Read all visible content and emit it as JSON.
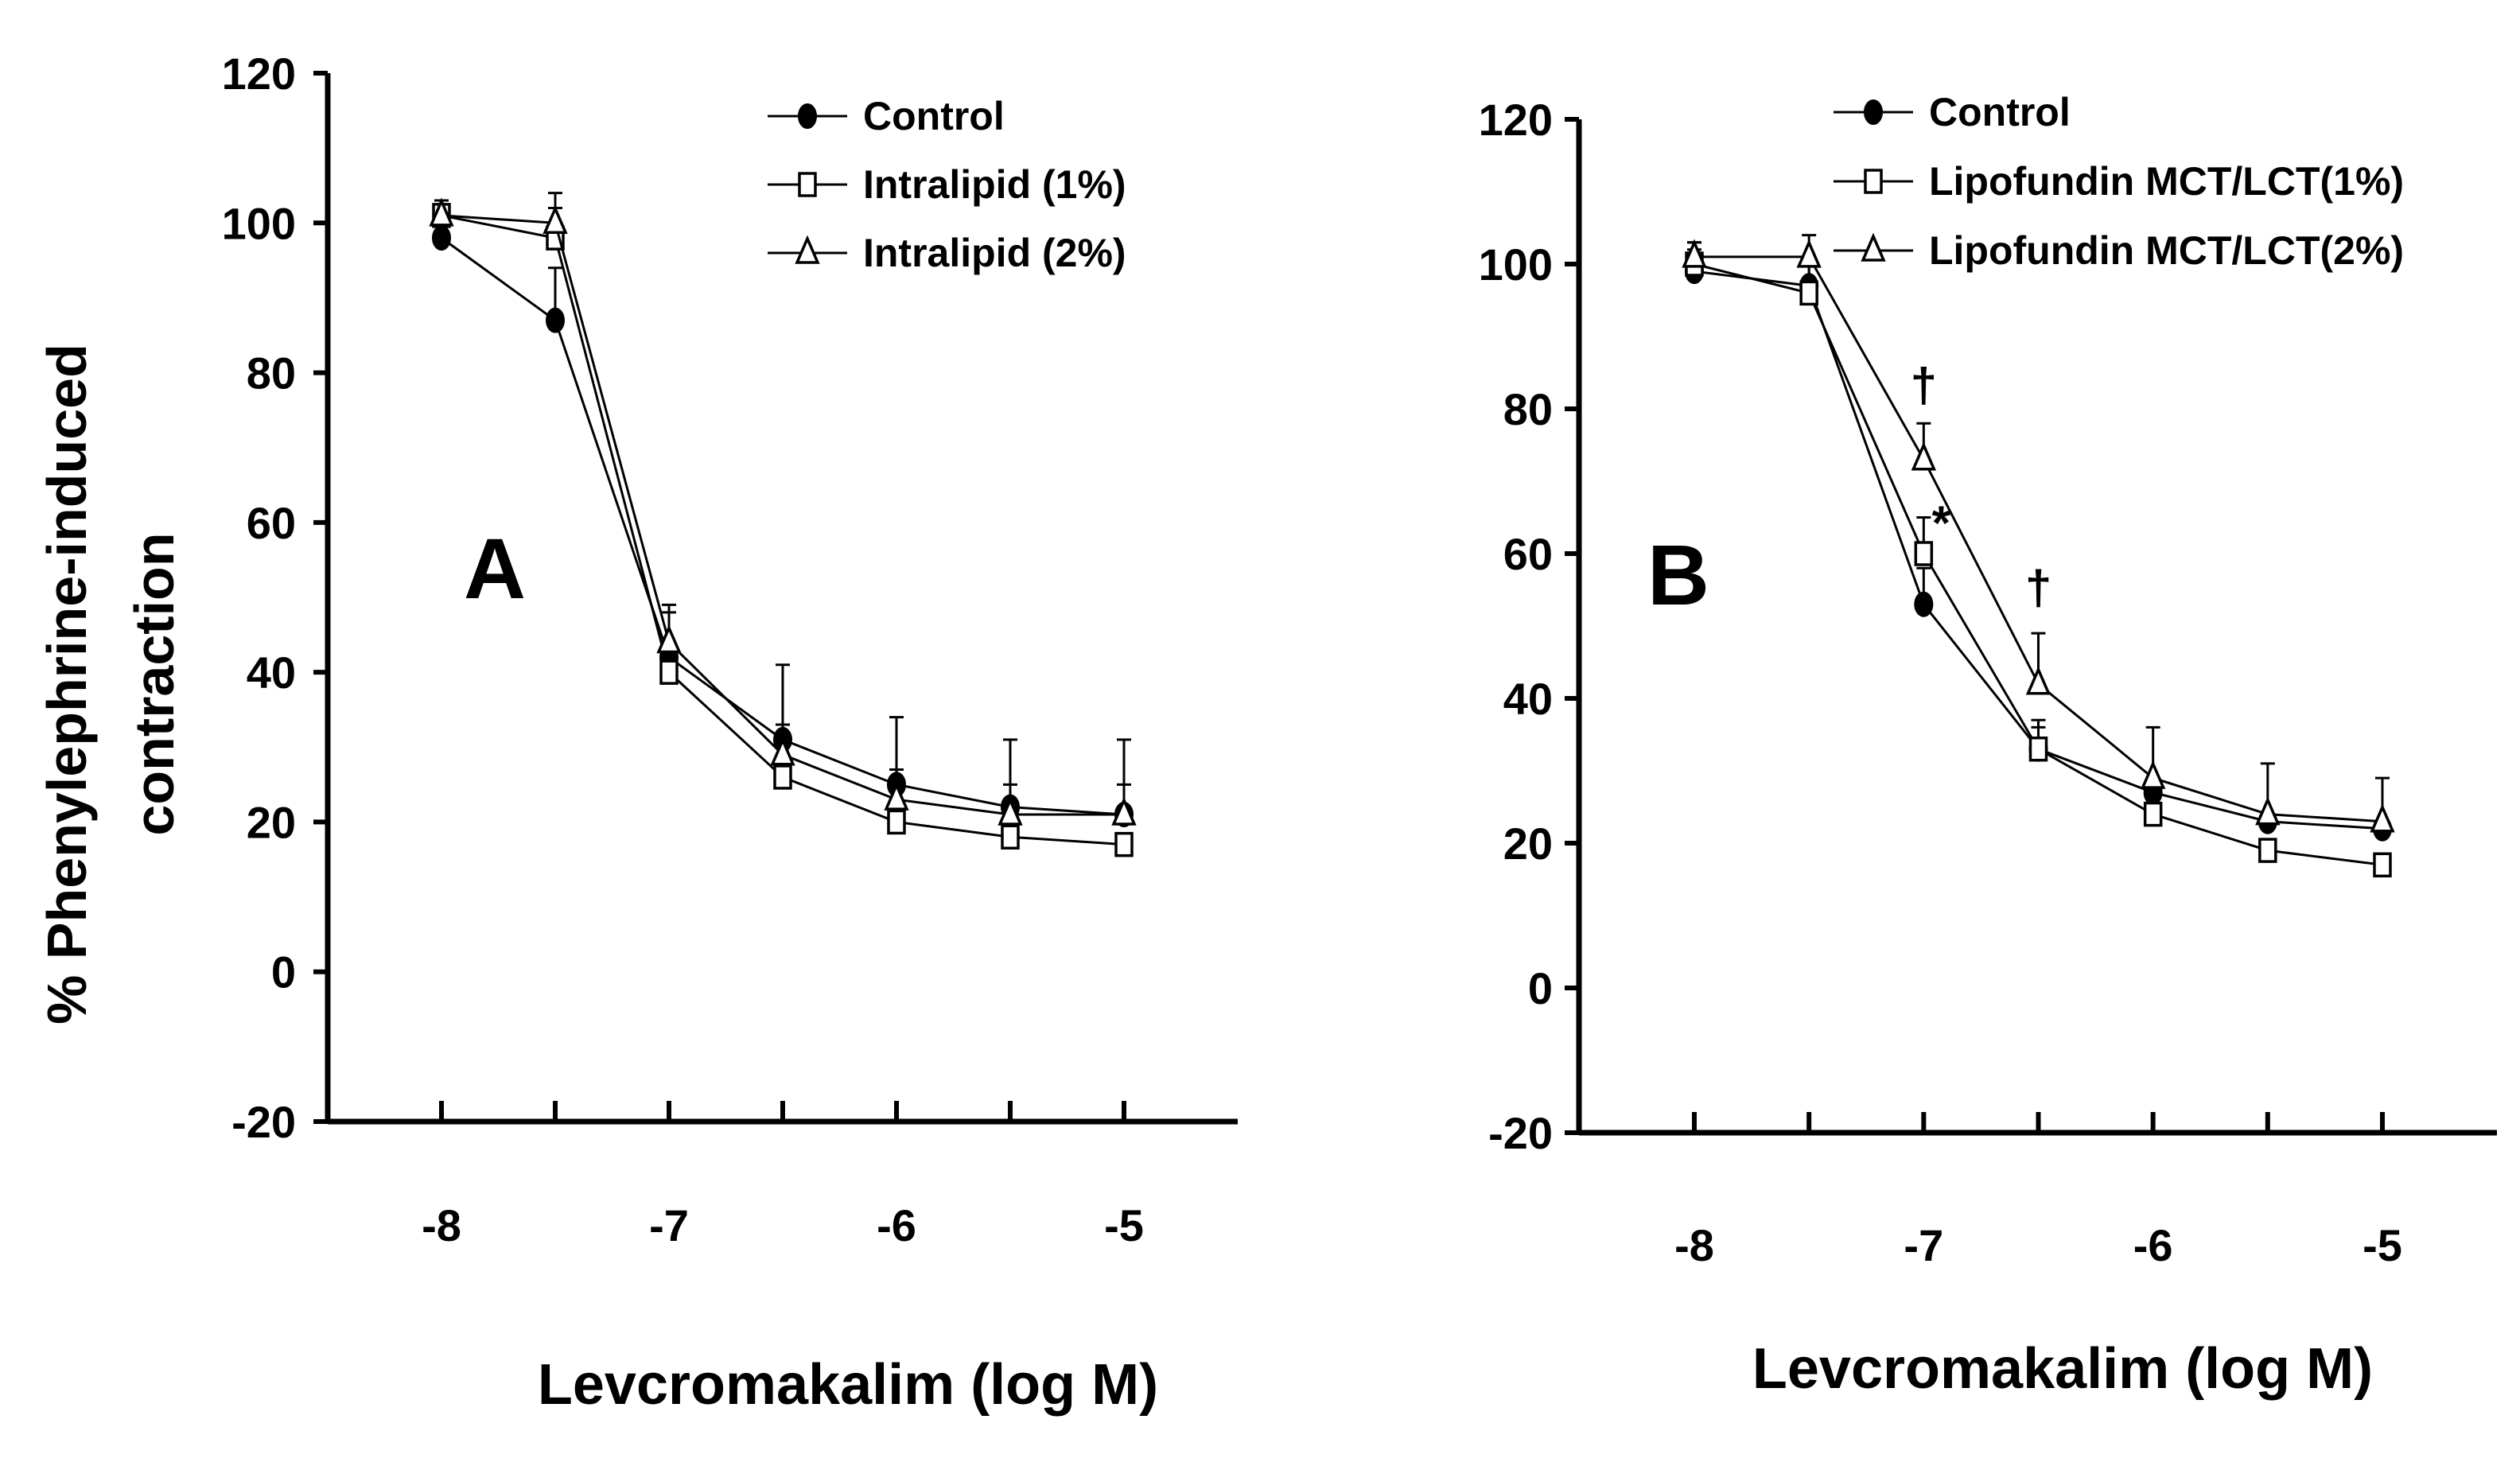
{
  "figure": {
    "ylabel_lines": [
      "% Phenylephrine-induced",
      "contraction"
    ]
  },
  "chart_data": [
    {
      "type": "line",
      "panel_label": "A",
      "xlabel": "Levcromakalim (log M)",
      "ylabel": "% Phenylephrine-induced contraction",
      "x": [
        -8,
        -7.5,
        -7,
        -6.5,
        -6,
        -5.5,
        -5
      ],
      "x_tick_labels": [
        "-8",
        "-7",
        "-6",
        "-5"
      ],
      "x_tick_values": [
        -8,
        -7,
        -6,
        -5
      ],
      "ylim": [
        -20,
        120
      ],
      "yticks": [
        -20,
        0,
        20,
        40,
        60,
        80,
        100,
        120
      ],
      "legend_position": "top-right",
      "series": [
        {
          "name": "Control",
          "marker": "filled-circle",
          "values": [
            98,
            87,
            42,
            31,
            25,
            22,
            21
          ],
          "errors": [
            0,
            7,
            6,
            10,
            9,
            9,
            10
          ]
        },
        {
          "name": "Intralipid (1%)",
          "marker": "open-square",
          "values": [
            101,
            98,
            40,
            26,
            20,
            18,
            17
          ],
          "errors": [
            2,
            4,
            4,
            0,
            0,
            0,
            0
          ]
        },
        {
          "name": "Intralipid (2%)",
          "marker": "open-triangle",
          "values": [
            101,
            100,
            44,
            29,
            23,
            21,
            21
          ],
          "errors": [
            2,
            4,
            5,
            4,
            4,
            4,
            4
          ]
        }
      ],
      "annotations": []
    },
    {
      "type": "line",
      "panel_label": "B",
      "xlabel": "Levcromakalim (log M)",
      "ylabel": "% Phenylephrine-induced contraction",
      "x": [
        -8,
        -7.5,
        -7,
        -6.5,
        -6,
        -5.5,
        -5
      ],
      "x_tick_labels": [
        "-8",
        "-7",
        "-6",
        "-5"
      ],
      "x_tick_values": [
        -8,
        -7,
        -6,
        -5
      ],
      "ylim": [
        -20,
        120
      ],
      "yticks": [
        -20,
        0,
        20,
        40,
        60,
        80,
        100,
        120
      ],
      "legend_position": "top-right",
      "series": [
        {
          "name": "Control",
          "marker": "filled-circle",
          "values": [
            99,
            97,
            53,
            33,
            27,
            23,
            22
          ],
          "errors": [
            3,
            3,
            5,
            3,
            0,
            0,
            0
          ]
        },
        {
          "name": "Lipofundin MCT/LCT(1%)",
          "marker": "open-square",
          "values": [
            100,
            96,
            60,
            33,
            24,
            19,
            17
          ],
          "errors": [
            3,
            4,
            5,
            4,
            0,
            0,
            0
          ]
        },
        {
          "name": "Lipofundin MCT/LCT(2%)",
          "marker": "open-triangle",
          "values": [
            101,
            101,
            73,
            42,
            29,
            24,
            23
          ],
          "errors": [
            2,
            3,
            5,
            7,
            7,
            7,
            6
          ]
        }
      ],
      "annotations": [
        {
          "text": "†",
          "x": -7,
          "y": 81
        },
        {
          "text": "*",
          "x": -7,
          "y": 62
        },
        {
          "text": "†",
          "x": -6.5,
          "y": 53
        }
      ]
    }
  ]
}
